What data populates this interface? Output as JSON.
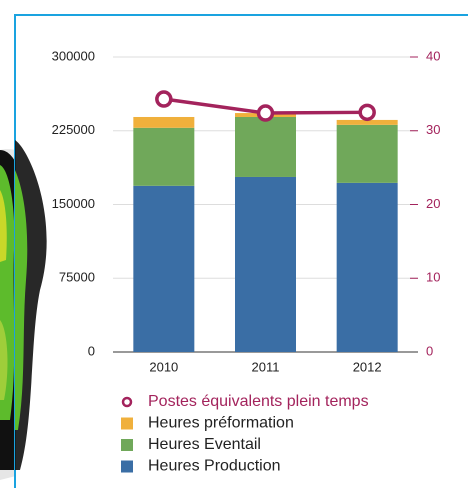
{
  "chart_data": {
    "type": "bar",
    "categories": [
      "2010",
      "2011",
      "2012"
    ],
    "series": [
      {
        "name": "Postes équivalents plein temps",
        "color": "#a3235c",
        "type": "line",
        "axis": "y2",
        "values": [
          34.3,
          32.4,
          32.5
        ]
      },
      {
        "name": "Heures préformation",
        "color": "#f0b03c",
        "values": [
          11000,
          4000,
          5000
        ]
      },
      {
        "name": "Heures Eventail",
        "color": "#70a85a",
        "values": [
          59000,
          61000,
          59000
        ]
      },
      {
        "name": "Heures Production",
        "color": "#3a6ea5",
        "values": [
          169000,
          178000,
          172000
        ]
      }
    ],
    "stacked": true,
    "ylim": [
      0,
      300000
    ],
    "yticks": [
      0,
      75000,
      150000,
      225000,
      300000
    ],
    "y2lim": [
      0,
      40
    ],
    "y2ticks": [
      0,
      10,
      20,
      30,
      40
    ],
    "grid": true
  }
}
